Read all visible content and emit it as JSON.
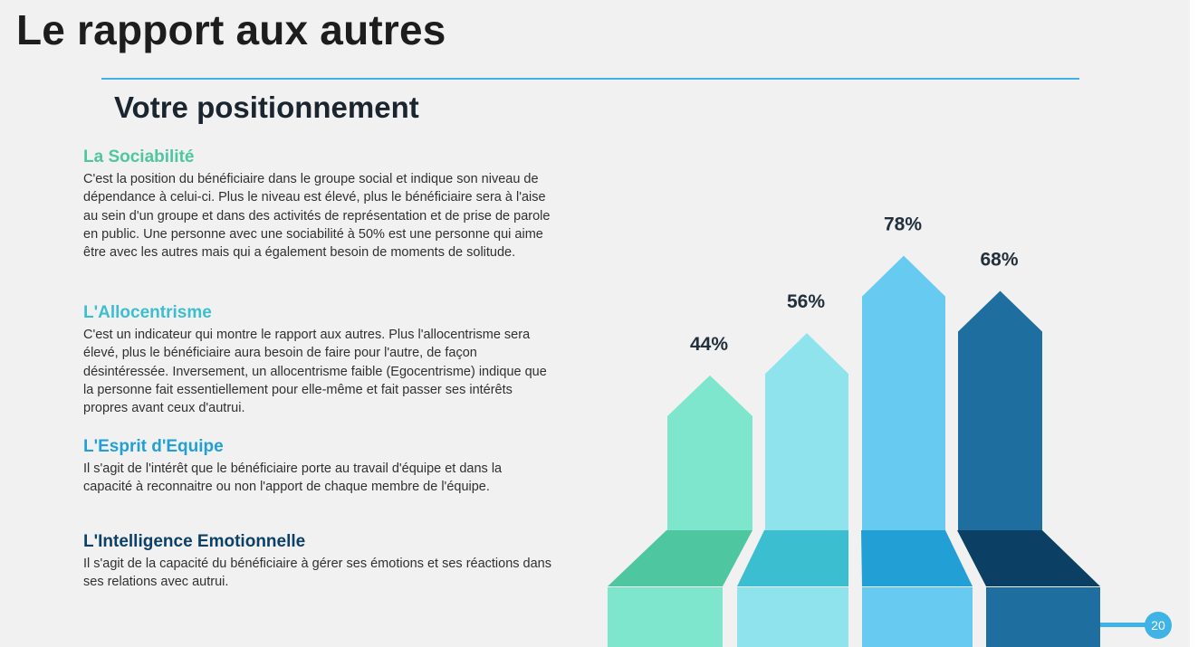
{
  "slide": {
    "title": "Le rapport aux autres",
    "subtitle": "Votre positionnement",
    "page_number": "20"
  },
  "sections": [
    {
      "heading": "La Sociabilité",
      "color": "#4ec6a0",
      "body": "C'est la position du bénéficiaire dans le groupe social et indique son niveau de dépendance à celui-ci. Plus le niveau est élevé, plus le bénéficiaire sera à l'aise au sein d'un groupe et dans des activités de représentation et de prise de parole en public. Une personne avec une sociabilité à 50% est une personne qui aime être avec les autres mais qui a également besoin de moments de solitude."
    },
    {
      "heading": "L'Allocentrisme",
      "color": "#3bbfd0",
      "body": "C'est un indicateur qui montre le rapport aux autres. Plus l'allocentrisme sera élevé, plus le bénéficiaire aura besoin de faire pour l'autre, de façon désintéressée. Inversement, un allocentrisme faible (Egocentrisme) indique que la personne fait essentiellement pour elle-même et fait passer ses intérêts propres avant ceux d'autrui."
    },
    {
      "heading": "L'Esprit d'Equipe",
      "color": "#22a0d6",
      "body": "Il s'agit de l'intérêt que le bénéficiaire porte au travail d'équipe et dans la capacité à reconnaitre ou non l'apport de chaque membre de l'équipe."
    },
    {
      "heading": "L'Intelligence Emotionnelle",
      "color": "#0d4066",
      "body": "Il s'agit de la capacité du bénéficiaire à gérer ses émotions et ses réactions dans ses relations avec autrui."
    }
  ],
  "chart_data": {
    "type": "bar",
    "categories": [
      "La Sociabilité",
      "L'Allocentrisme",
      "L'Esprit d'Equipe",
      "L'Intelligence Emotionnelle"
    ],
    "values": [
      44,
      56,
      78,
      68
    ],
    "value_labels": [
      "44%",
      "56%",
      "78%",
      "68%"
    ],
    "unit": "%",
    "ylim": [
      0,
      100
    ],
    "grid": false,
    "legend": "none",
    "colors": {
      "light": [
        "#7de6cc",
        "#8fe3ec",
        "#67caf0",
        "#1f6ea0"
      ],
      "dark": [
        "#4ec6a0",
        "#3bbfd0",
        "#22a0d6",
        "#0b4064"
      ]
    }
  }
}
